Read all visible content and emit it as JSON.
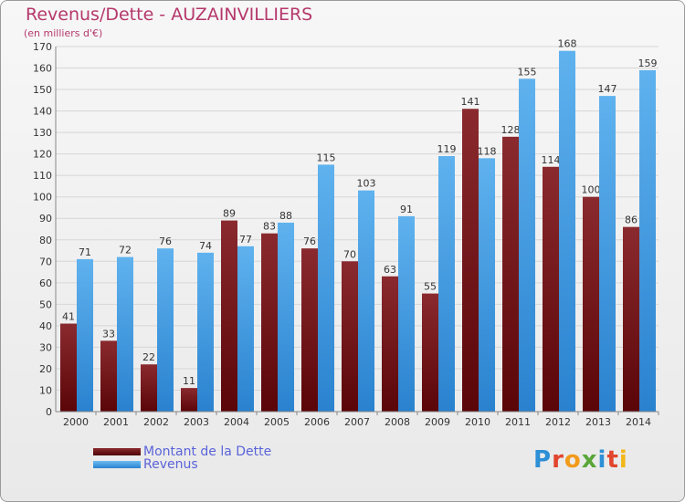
{
  "header": {
    "title": "Revenus/Dette - AUZAINVILLIERS",
    "subtitle": "(en milliers d'€)"
  },
  "legend": {
    "items": [
      {
        "label": "Montant de la Dette",
        "color": "#6e0f12"
      },
      {
        "label": "Revenus",
        "color": "#3f9be0"
      }
    ]
  },
  "brand": {
    "logo_text": "Proxiti"
  },
  "colors": {
    "dette_top": "#8a2a2e",
    "dette_bottom": "#5a0508",
    "revenus_top": "#5fb2ee",
    "revenus_bottom": "#2a82cf",
    "title": "#b5386b",
    "legend_text": "#5a63d8"
  },
  "chart_data": {
    "type": "bar",
    "title": "Revenus/Dette - AUZAINVILLIERS",
    "ylabel": "(en milliers d'€)",
    "xlabel": "",
    "categories": [
      "2000",
      "2001",
      "2002",
      "2003",
      "2004",
      "2005",
      "2006",
      "2007",
      "2008",
      "2009",
      "2010",
      "2011",
      "2012",
      "2013",
      "2014"
    ],
    "series": [
      {
        "name": "Montant de la Dette",
        "values": [
          41,
          33,
          22,
          11,
          89,
          83,
          76,
          70,
          63,
          55,
          141,
          128,
          114,
          100,
          86
        ]
      },
      {
        "name": "Revenus",
        "values": [
          71,
          72,
          76,
          74,
          77,
          88,
          115,
          103,
          91,
          119,
          118,
          155,
          168,
          147,
          159
        ]
      }
    ],
    "ylim": [
      0,
      170
    ],
    "yticks": [
      0,
      10,
      20,
      30,
      40,
      50,
      60,
      70,
      80,
      90,
      100,
      110,
      120,
      130,
      140,
      150,
      160,
      170
    ],
    "grid": true,
    "legend_position": "bottom-left"
  }
}
